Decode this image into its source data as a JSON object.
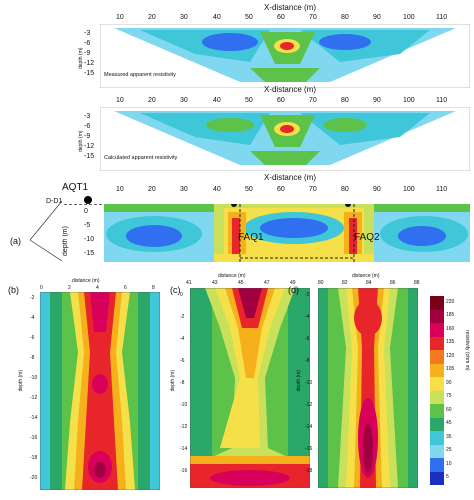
{
  "top": {
    "xaxis_title": "X-distance (m)",
    "xticks": [
      "10",
      "20",
      "30",
      "40",
      "50",
      "60",
      "70",
      "80",
      "90",
      "100",
      "110"
    ],
    "ydepth_ticks": [
      "-3",
      "-6",
      "-9",
      "-12",
      "-15"
    ],
    "measured_caption": "Measured apparent resistivity",
    "calculated_caption": "Calculated apparent resistivity",
    "pseudo_ylabel": "depth (m)"
  },
  "section": {
    "profile_label": "D-D1",
    "well_label": "AQT1",
    "ylabel": "depth (m)",
    "yticks": [
      "0",
      "-5",
      "-10",
      "-15"
    ],
    "fault1": "FAQ1",
    "fault2": "FAQ2",
    "panel_id": "(a)"
  },
  "sub_b": {
    "label": "(b)",
    "xtitle": "distance (m)",
    "xticks": [
      "0",
      "2",
      "4",
      "6",
      "8"
    ],
    "ylabel": "depth (m)",
    "yticks": [
      "-2",
      "-4",
      "-6",
      "-8",
      "-10",
      "-12",
      "-14",
      "-16",
      "-18",
      "-20"
    ]
  },
  "sub_c": {
    "label": "(c)",
    "xtitle": "distance (m)",
    "xticks": [
      "41",
      "43",
      "45",
      "47",
      "49"
    ],
    "ylabel": "depth (m)",
    "yticks": [
      "0",
      "-2",
      "-4",
      "-6",
      "-8",
      "-10",
      "-12",
      "-14",
      "-16"
    ]
  },
  "sub_d": {
    "label": "(d)",
    "xtitle": "distance (m)",
    "xticks": [
      "80",
      "82",
      "84",
      "86",
      "88"
    ],
    "ylabel": "depth (m)",
    "yticks": [
      "-2",
      "-4",
      "-6",
      "-8",
      "-10",
      "-12",
      "-14",
      "-16",
      "-18"
    ]
  },
  "colorbar": {
    "title": "resistivity (ohm m)",
    "labels": [
      "220",
      "185",
      "160",
      "135",
      "120",
      "105",
      "90",
      "75",
      "60",
      "45",
      "35",
      "25",
      "10",
      "5"
    ],
    "colors": [
      "#7a0019",
      "#a00040",
      "#d8005a",
      "#e8252a",
      "#f47a20",
      "#f5b01c",
      "#f5e04a",
      "#c8e05a",
      "#5cc24a",
      "#2aa86a",
      "#3fc6d8",
      "#7fd8f0",
      "#2f6ff0",
      "#1a2fc0"
    ]
  }
}
